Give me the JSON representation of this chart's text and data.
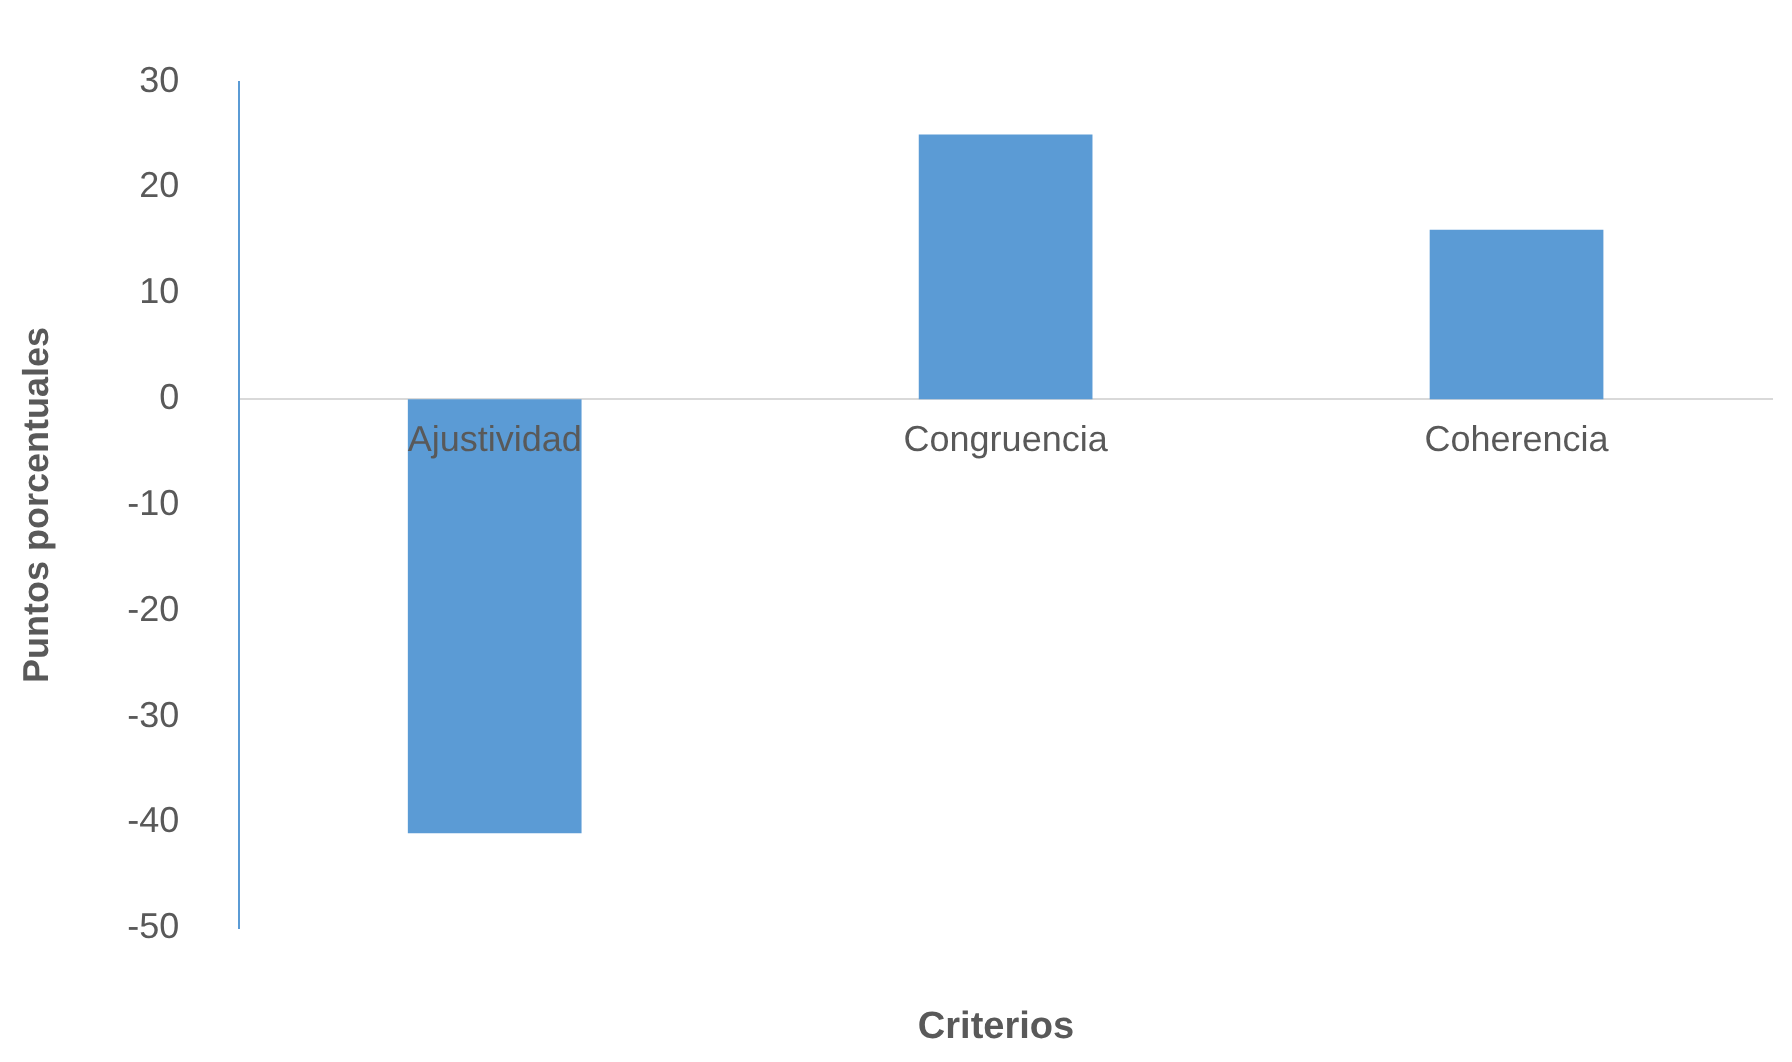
{
  "chart_data": {
    "type": "bar",
    "xlabel": "Criterios",
    "ylabel": "Puntos porcentuales",
    "categories": [
      "Ajustividad",
      "Congruencia",
      "Coherencia"
    ],
    "values": [
      -41,
      25,
      16
    ],
    "color": "#5b9bd5",
    "ylim": [
      -50,
      30
    ],
    "yticks": [
      -50,
      -40,
      -30,
      -20,
      -10,
      0,
      10,
      20,
      30
    ],
    "grid": false,
    "legend": false
  }
}
